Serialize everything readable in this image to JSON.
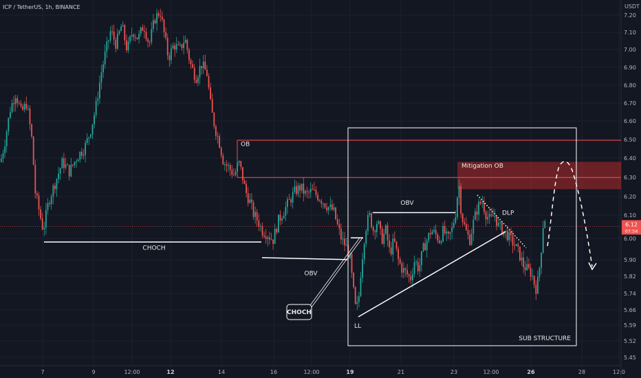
{
  "title": "ICP / TetherUS, 1h, BINANCE",
  "colors": {
    "bg": "#131722",
    "up": "#26a69a",
    "down": "#ef5350",
    "grid": "#1e2230",
    "ob": "#ff4d4d",
    "mitigation": "#b22a2a",
    "price_tag": "#ef5350"
  },
  "chart_data": {
    "type": "candlestick",
    "title": "ICP / TetherUS, 1h, BINANCE",
    "y_unit": "USDT",
    "y_ticks": [
      "7.20",
      "7.10",
      "7.00",
      "6.90",
      "6.80",
      "6.70",
      "6.60",
      "6.50",
      "6.40",
      "6.30",
      "6.20",
      "6.10",
      "6.00",
      "5.90",
      "5.82",
      "5.74",
      "5.66",
      "5.59",
      "5.52",
      "5.45"
    ],
    "x_ticks": [
      "7",
      "9",
      "12:00",
      "12",
      "14",
      "16",
      "12:00",
      "19",
      "21",
      "23",
      "12:00",
      "26",
      "28",
      "12:0"
    ],
    "x_ticks_bold": [
      "12",
      "19",
      "26"
    ],
    "last_price": "6.12",
    "countdown": "07:54",
    "price_path": [
      [
        0,
        6.45
      ],
      [
        6,
        6.55
      ],
      [
        14,
        6.72
      ],
      [
        22,
        6.8
      ],
      [
        30,
        6.7
      ],
      [
        38,
        6.75
      ],
      [
        46,
        6.55
      ],
      [
        50,
        6.3
      ],
      [
        56,
        6.2
      ],
      [
        62,
        6.1
      ],
      [
        70,
        6.25
      ],
      [
        80,
        6.35
      ],
      [
        90,
        6.45
      ],
      [
        100,
        6.4
      ],
      [
        112,
        6.48
      ],
      [
        122,
        6.52
      ],
      [
        130,
        6.6
      ],
      [
        138,
        6.72
      ],
      [
        146,
        6.9
      ],
      [
        152,
        7.0
      ],
      [
        160,
        7.12
      ],
      [
        168,
        7.05
      ],
      [
        176,
        7.15
      ],
      [
        184,
        7.02
      ],
      [
        192,
        7.12
      ],
      [
        200,
        7.08
      ],
      [
        208,
        7.15
      ],
      [
        216,
        7.05
      ],
      [
        224,
        7.18
      ],
      [
        232,
        7.22
      ],
      [
        238,
        7.1
      ],
      [
        244,
        6.98
      ],
      [
        252,
        7.05
      ],
      [
        260,
        7.02
      ],
      [
        268,
        7.08
      ],
      [
        276,
        6.95
      ],
      [
        284,
        6.88
      ],
      [
        292,
        6.95
      ],
      [
        300,
        6.9
      ],
      [
        306,
        6.72
      ],
      [
        312,
        6.62
      ],
      [
        318,
        6.55
      ],
      [
        324,
        6.45
      ],
      [
        332,
        6.42
      ],
      [
        340,
        6.38
      ],
      [
        346,
        6.45
      ],
      [
        350,
        6.4
      ],
      [
        356,
        6.3
      ],
      [
        362,
        6.25
      ],
      [
        368,
        6.18
      ],
      [
        374,
        6.15
      ],
      [
        380,
        6.1
      ],
      [
        388,
        6.08
      ],
      [
        396,
        6.05
      ],
      [
        404,
        6.15
      ],
      [
        412,
        6.2
      ],
      [
        420,
        6.25
      ],
      [
        428,
        6.3
      ],
      [
        436,
        6.32
      ],
      [
        444,
        6.28
      ],
      [
        452,
        6.3
      ],
      [
        460,
        6.28
      ],
      [
        468,
        6.25
      ],
      [
        476,
        6.22
      ],
      [
        484,
        6.2
      ],
      [
        490,
        6.12
      ],
      [
        496,
        6.05
      ],
      [
        502,
        6.02
      ],
      [
        508,
        5.95
      ],
      [
        512,
        5.82
      ],
      [
        516,
        5.7
      ],
      [
        520,
        5.72
      ],
      [
        524,
        5.9
      ],
      [
        530,
        6.1
      ],
      [
        536,
        6.18
      ],
      [
        542,
        6.1
      ],
      [
        548,
        6.15
      ],
      [
        554,
        6.05
      ],
      [
        560,
        6.1
      ],
      [
        566,
        5.98
      ],
      [
        572,
        6.05
      ],
      [
        578,
        5.95
      ],
      [
        584,
        5.9
      ],
      [
        590,
        5.88
      ],
      [
        596,
        5.85
      ],
      [
        602,
        5.95
      ],
      [
        608,
        5.9
      ],
      [
        614,
        6.0
      ],
      [
        620,
        6.05
      ],
      [
        626,
        6.1
      ],
      [
        632,
        6.08
      ],
      [
        638,
        6.05
      ],
      [
        644,
        6.1
      ],
      [
        650,
        6.05
      ],
      [
        656,
        6.1
      ],
      [
        662,
        6.2
      ],
      [
        666,
        6.35
      ],
      [
        670,
        6.18
      ],
      [
        676,
        6.1
      ],
      [
        682,
        6.05
      ],
      [
        688,
        6.15
      ],
      [
        694,
        6.22
      ],
      [
        700,
        6.25
      ],
      [
        706,
        6.18
      ],
      [
        712,
        6.15
      ],
      [
        718,
        6.18
      ],
      [
        724,
        6.12
      ],
      [
        730,
        6.1
      ],
      [
        736,
        6.08
      ],
      [
        742,
        6.05
      ],
      [
        748,
        6.02
      ],
      [
        754,
        5.98
      ],
      [
        760,
        5.92
      ],
      [
        766,
        5.9
      ],
      [
        772,
        5.88
      ],
      [
        778,
        5.8
      ],
      [
        782,
        5.85
      ],
      [
        786,
        6.0
      ],
      [
        790,
        6.18
      ],
      [
        794,
        6.12
      ]
    ],
    "annotations": {
      "ob_label": "OB",
      "mitigation_label": "Mitigation OB",
      "choch_line_label": "CHOCH",
      "obv_lower_label": "OBV",
      "choch_box_label": "CHOCH",
      "obv_upper_label": "OBV",
      "dlp_label": "DLP",
      "ll_label": "LL",
      "sub_structure_label": "SUB STRUCTURE"
    }
  }
}
